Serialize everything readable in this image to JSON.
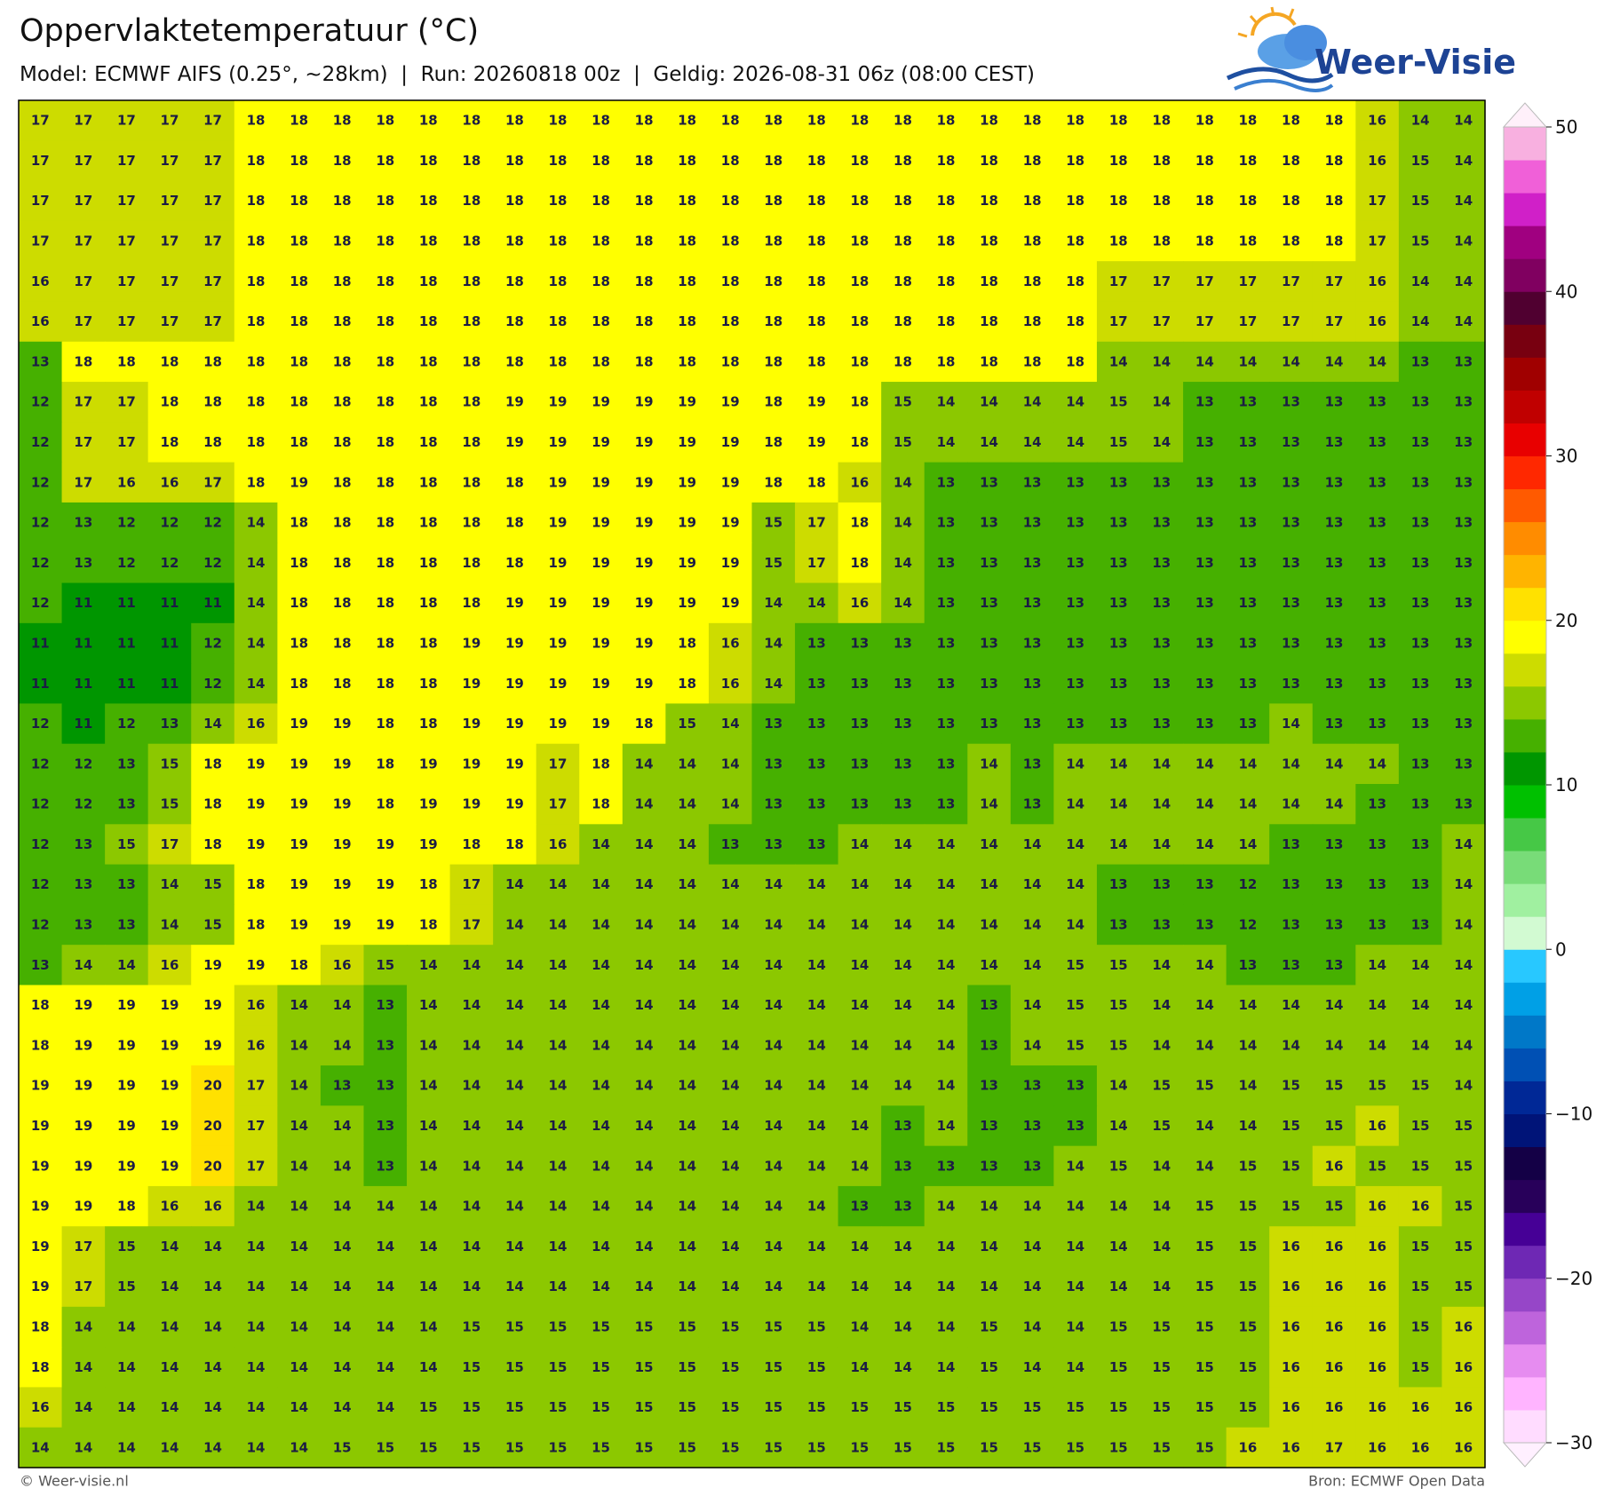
{
  "header": {
    "title": "Oppervlaktetemperatuur (°C)",
    "subtitle": "Model: ECMWF AIFS (0.25°, ~28km)  |  Run: 20260818 00z  |  Geldig: 2026-08-31 06z (08:00 CEST)",
    "logo": "Weer-Visie"
  },
  "map": {
    "type": "grid",
    "rows": [
      [
        17,
        17,
        17,
        17,
        17,
        18,
        18,
        18,
        18,
        18,
        18,
        18,
        18,
        18,
        18,
        18,
        18,
        18,
        18,
        18,
        18,
        18,
        18,
        18,
        18,
        18,
        18,
        18,
        18,
        18,
        18,
        16,
        14,
        14
      ],
      [
        17,
        17,
        17,
        17,
        17,
        18,
        18,
        18,
        18,
        18,
        18,
        18,
        18,
        18,
        18,
        18,
        18,
        18,
        18,
        18,
        18,
        18,
        18,
        18,
        18,
        18,
        18,
        18,
        18,
        18,
        18,
        16,
        15,
        14
      ],
      [
        17,
        17,
        17,
        17,
        17,
        18,
        18,
        18,
        18,
        18,
        18,
        18,
        18,
        18,
        18,
        18,
        18,
        18,
        18,
        18,
        18,
        18,
        18,
        18,
        18,
        18,
        18,
        18,
        18,
        18,
        18,
        17,
        15,
        14
      ],
      [
        17,
        17,
        17,
        17,
        17,
        18,
        18,
        18,
        18,
        18,
        18,
        18,
        18,
        18,
        18,
        18,
        18,
        18,
        18,
        18,
        18,
        18,
        18,
        18,
        18,
        18,
        18,
        18,
        18,
        18,
        18,
        17,
        15,
        14
      ],
      [
        16,
        17,
        17,
        17,
        17,
        18,
        18,
        18,
        18,
        18,
        18,
        18,
        18,
        18,
        18,
        18,
        18,
        18,
        18,
        18,
        18,
        18,
        18,
        18,
        18,
        17,
        17,
        17,
        17,
        17,
        17,
        16,
        14,
        14
      ],
      [
        16,
        17,
        17,
        17,
        17,
        18,
        18,
        18,
        18,
        18,
        18,
        18,
        18,
        18,
        18,
        18,
        18,
        18,
        18,
        18,
        18,
        18,
        18,
        18,
        18,
        17,
        17,
        17,
        17,
        17,
        17,
        16,
        14,
        14
      ],
      [
        13,
        18,
        18,
        18,
        18,
        18,
        18,
        18,
        18,
        18,
        18,
        18,
        18,
        18,
        18,
        18,
        18,
        18,
        18,
        18,
        18,
        18,
        18,
        18,
        18,
        14,
        14,
        14,
        14,
        14,
        14,
        14,
        13,
        13
      ],
      [
        12,
        17,
        17,
        18,
        18,
        18,
        18,
        18,
        18,
        18,
        18,
        19,
        19,
        19,
        19,
        19,
        19,
        18,
        19,
        18,
        15,
        14,
        14,
        14,
        14,
        15,
        14,
        13,
        13,
        13,
        13,
        13,
        13,
        13
      ],
      [
        12,
        17,
        17,
        18,
        18,
        18,
        18,
        18,
        18,
        18,
        18,
        19,
        19,
        19,
        19,
        19,
        19,
        18,
        19,
        18,
        15,
        14,
        14,
        14,
        14,
        15,
        14,
        13,
        13,
        13,
        13,
        13,
        13,
        13
      ],
      [
        12,
        17,
        16,
        16,
        17,
        18,
        19,
        18,
        18,
        18,
        18,
        18,
        19,
        19,
        19,
        19,
        19,
        18,
        18,
        16,
        14,
        13,
        13,
        13,
        13,
        13,
        13,
        13,
        13,
        13,
        13,
        13,
        13,
        13
      ],
      [
        12,
        13,
        12,
        12,
        12,
        14,
        18,
        18,
        18,
        18,
        18,
        18,
        19,
        19,
        19,
        19,
        19,
        15,
        17,
        18,
        14,
        13,
        13,
        13,
        13,
        13,
        13,
        13,
        13,
        13,
        13,
        13,
        13,
        13
      ],
      [
        12,
        13,
        12,
        12,
        12,
        14,
        18,
        18,
        18,
        18,
        18,
        18,
        19,
        19,
        19,
        19,
        19,
        15,
        17,
        18,
        14,
        13,
        13,
        13,
        13,
        13,
        13,
        13,
        13,
        13,
        13,
        13,
        13,
        13
      ],
      [
        12,
        11,
        11,
        11,
        11,
        14,
        18,
        18,
        18,
        18,
        18,
        19,
        19,
        19,
        19,
        19,
        19,
        14,
        14,
        16,
        14,
        13,
        13,
        13,
        13,
        13,
        13,
        13,
        13,
        13,
        13,
        13,
        13,
        13
      ],
      [
        11,
        11,
        11,
        11,
        12,
        14,
        18,
        18,
        18,
        18,
        19,
        19,
        19,
        19,
        19,
        18,
        16,
        14,
        13,
        13,
        13,
        13,
        13,
        13,
        13,
        13,
        13,
        13,
        13,
        13,
        13,
        13,
        13,
        13
      ],
      [
        11,
        11,
        11,
        11,
        12,
        14,
        18,
        18,
        18,
        18,
        19,
        19,
        19,
        19,
        19,
        18,
        16,
        14,
        13,
        13,
        13,
        13,
        13,
        13,
        13,
        13,
        13,
        13,
        13,
        13,
        13,
        13,
        13,
        13
      ],
      [
        12,
        11,
        12,
        13,
        14,
        16,
        19,
        19,
        18,
        18,
        19,
        19,
        19,
        19,
        18,
        15,
        14,
        13,
        13,
        13,
        13,
        13,
        13,
        13,
        13,
        13,
        13,
        13,
        13,
        14,
        13,
        13,
        13,
        13
      ],
      [
        12,
        12,
        13,
        15,
        18,
        19,
        19,
        19,
        18,
        19,
        19,
        19,
        17,
        18,
        14,
        14,
        14,
        13,
        13,
        13,
        13,
        13,
        14,
        13,
        14,
        14,
        14,
        14,
        14,
        14,
        14,
        14,
        13,
        13
      ],
      [
        12,
        12,
        13,
        15,
        18,
        19,
        19,
        19,
        18,
        19,
        19,
        19,
        17,
        18,
        14,
        14,
        14,
        13,
        13,
        13,
        13,
        13,
        14,
        13,
        14,
        14,
        14,
        14,
        14,
        14,
        14,
        13,
        13,
        13
      ],
      [
        12,
        13,
        15,
        17,
        18,
        19,
        19,
        19,
        19,
        19,
        18,
        18,
        16,
        14,
        14,
        14,
        13,
        13,
        13,
        14,
        14,
        14,
        14,
        14,
        14,
        14,
        14,
        14,
        14,
        13,
        13,
        13,
        13,
        14
      ],
      [
        12,
        13,
        13,
        14,
        15,
        18,
        19,
        19,
        19,
        18,
        17,
        14,
        14,
        14,
        14,
        14,
        14,
        14,
        14,
        14,
        14,
        14,
        14,
        14,
        14,
        13,
        13,
        13,
        12,
        13,
        13,
        13,
        13,
        14
      ],
      [
        12,
        13,
        13,
        14,
        15,
        18,
        19,
        19,
        19,
        18,
        17,
        14,
        14,
        14,
        14,
        14,
        14,
        14,
        14,
        14,
        14,
        14,
        14,
        14,
        14,
        13,
        13,
        13,
        12,
        13,
        13,
        13,
        13,
        14
      ],
      [
        13,
        14,
        14,
        16,
        19,
        19,
        18,
        16,
        15,
        14,
        14,
        14,
        14,
        14,
        14,
        14,
        14,
        14,
        14,
        14,
        14,
        14,
        14,
        14,
        15,
        15,
        14,
        14,
        13,
        13,
        13,
        14,
        14,
        14
      ],
      [
        18,
        19,
        19,
        19,
        19,
        16,
        14,
        14,
        13,
        14,
        14,
        14,
        14,
        14,
        14,
        14,
        14,
        14,
        14,
        14,
        14,
        14,
        13,
        14,
        15,
        15,
        14,
        14,
        14,
        14,
        14,
        14,
        14,
        14
      ],
      [
        18,
        19,
        19,
        19,
        19,
        16,
        14,
        14,
        13,
        14,
        14,
        14,
        14,
        14,
        14,
        14,
        14,
        14,
        14,
        14,
        14,
        14,
        13,
        14,
        15,
        15,
        14,
        14,
        14,
        14,
        14,
        14,
        14,
        14
      ],
      [
        19,
        19,
        19,
        19,
        20,
        17,
        14,
        13,
        13,
        14,
        14,
        14,
        14,
        14,
        14,
        14,
        14,
        14,
        14,
        14,
        14,
        14,
        13,
        13,
        13,
        14,
        15,
        15,
        14,
        15,
        15,
        15,
        15,
        14
      ],
      [
        19,
        19,
        19,
        19,
        20,
        17,
        14,
        14,
        13,
        14,
        14,
        14,
        14,
        14,
        14,
        14,
        14,
        14,
        14,
        14,
        13,
        14,
        13,
        13,
        13,
        14,
        15,
        14,
        14,
        15,
        15,
        16,
        15,
        15
      ],
      [
        19,
        19,
        19,
        19,
        20,
        17,
        14,
        14,
        13,
        14,
        14,
        14,
        14,
        14,
        14,
        14,
        14,
        14,
        14,
        14,
        13,
        13,
        13,
        13,
        14,
        15,
        14,
        14,
        15,
        15,
        16,
        15,
        15,
        15
      ],
      [
        19,
        19,
        18,
        16,
        16,
        14,
        14,
        14,
        14,
        14,
        14,
        14,
        14,
        14,
        14,
        14,
        14,
        14,
        14,
        13,
        13,
        14,
        14,
        14,
        14,
        14,
        14,
        15,
        15,
        15,
        15,
        16,
        16,
        15
      ],
      [
        19,
        17,
        15,
        14,
        14,
        14,
        14,
        14,
        14,
        14,
        14,
        14,
        14,
        14,
        14,
        14,
        14,
        14,
        14,
        14,
        14,
        14,
        14,
        14,
        14,
        14,
        14,
        15,
        15,
        16,
        16,
        16,
        15,
        15
      ],
      [
        19,
        17,
        15,
        14,
        14,
        14,
        14,
        14,
        14,
        14,
        14,
        14,
        14,
        14,
        14,
        14,
        14,
        14,
        14,
        14,
        14,
        14,
        14,
        14,
        14,
        14,
        14,
        15,
        15,
        16,
        16,
        16,
        15,
        15
      ],
      [
        18,
        14,
        14,
        14,
        14,
        14,
        14,
        14,
        14,
        14,
        15,
        15,
        15,
        15,
        15,
        15,
        15,
        15,
        15,
        14,
        14,
        14,
        15,
        14,
        14,
        15,
        15,
        15,
        15,
        16,
        16,
        16,
        15,
        16
      ],
      [
        18,
        14,
        14,
        14,
        14,
        14,
        14,
        14,
        14,
        14,
        15,
        15,
        15,
        15,
        15,
        15,
        15,
        15,
        15,
        14,
        14,
        14,
        15,
        14,
        14,
        15,
        15,
        15,
        15,
        16,
        16,
        16,
        15,
        16
      ],
      [
        16,
        14,
        14,
        14,
        14,
        14,
        14,
        14,
        14,
        15,
        15,
        15,
        15,
        15,
        15,
        15,
        15,
        15,
        15,
        15,
        15,
        15,
        15,
        15,
        15,
        15,
        15,
        15,
        15,
        16,
        16,
        16,
        16,
        16
      ],
      [
        14,
        14,
        14,
        14,
        14,
        14,
        14,
        15,
        15,
        15,
        15,
        15,
        15,
        15,
        15,
        15,
        15,
        15,
        15,
        15,
        15,
        15,
        15,
        15,
        15,
        15,
        15,
        15,
        16,
        16,
        17,
        16,
        16,
        16
      ]
    ]
  },
  "colorbar": {
    "lim": [
      -30,
      50
    ],
    "ticks": [
      {
        "value": -30,
        "label": "−30"
      },
      {
        "value": -20,
        "label": "−20"
      },
      {
        "value": -10,
        "label": "−10"
      },
      0,
      10,
      20,
      30,
      40,
      50
    ],
    "colors": [
      "#ffdcff",
      "#ffb4ff",
      "#e68cf0",
      "#be64dc",
      "#9646c8",
      "#6e28b4",
      "#460096",
      "#28005a",
      "#140046",
      "#001478",
      "#002896",
      "#0050b4",
      "#0078c8",
      "#00a0e6",
      "#28c8ff",
      "#d2fad2",
      "#a0f0a0",
      "#78dc78",
      "#46c846",
      "#00c000",
      "#009600",
      "#46b000",
      "#8cc800",
      "#cddc00",
      "#ffff00",
      "#ffe100",
      "#ffb400",
      "#ff8c00",
      "#ff5a00",
      "#ff2800",
      "#e80000",
      "#c00000",
      "#a00000",
      "#780010",
      "#500030",
      "#800060",
      "#a00080",
      "#d020c8",
      "#f060d8",
      "#f8b0e0"
    ]
  },
  "footer": {
    "credit": "© Weer-visie.nl",
    "source": "Bron: ECMWF Open Data"
  }
}
